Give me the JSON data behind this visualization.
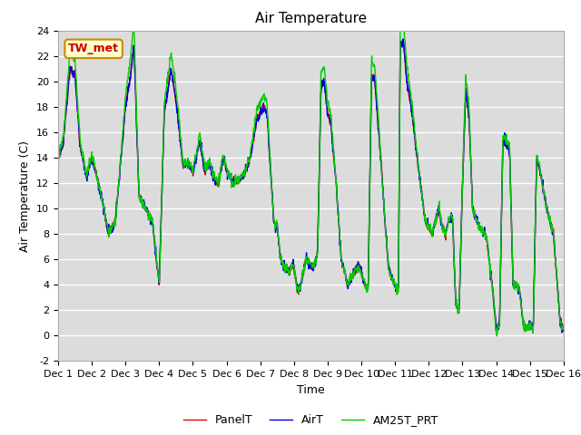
{
  "title": "Air Temperature",
  "ylabel": "Air Temperature (C)",
  "xlabel": "Time",
  "annotation": "TW_met",
  "ylim": [
    -2,
    24
  ],
  "yticks": [
    -2,
    0,
    2,
    4,
    6,
    8,
    10,
    12,
    14,
    16,
    18,
    20,
    22,
    24
  ],
  "xtick_labels": [
    "Dec 1",
    "Dec 2",
    "Dec 3",
    "Dec 4",
    "Dec 5",
    "Dec 6",
    "Dec 7",
    "Dec 8",
    "Dec 9",
    "Dec 10",
    "Dec 11",
    "Dec 12",
    "Dec 13",
    "Dec 14",
    "Dec 15",
    "Dec 16"
  ],
  "n_days": 15,
  "series_colors": {
    "PanelT": "#dd0000",
    "AirT": "#0000dd",
    "AM25T_PRT": "#00cc00"
  },
  "lw": 1.0,
  "plot_bg": "#dcdcdc",
  "fig_bg": "#ffffff",
  "grid_color": "#ffffff",
  "annotation_bg": "#ffffcc",
  "annotation_edge": "#cc8800",
  "annotation_text_color": "#cc0000",
  "title_fontsize": 11,
  "axis_fontsize": 9,
  "tick_fontsize": 8
}
